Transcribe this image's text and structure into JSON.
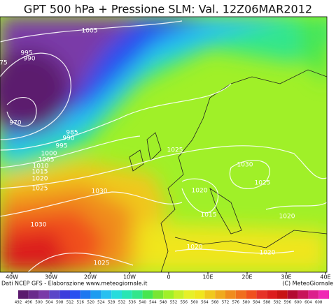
{
  "title": "GPT 500 hPa + Pressione SLM: Val. 12Z06MAR2012",
  "isobars": [
    "1005",
    "995",
    "990",
    "75",
    "970",
    "985",
    "990",
    "995",
    "1000",
    "1005",
    "1010",
    "1015",
    "1020",
    "1025",
    "1030",
    "1025",
    "1030",
    "1025",
    "1020",
    "1015",
    "1020",
    "1030",
    "1020",
    "1020",
    "1025"
  ],
  "longitudes": [
    "40W",
    "30W",
    "20W",
    "10W",
    "0",
    "10E",
    "20E",
    "30E",
    "40E"
  ],
  "credits_left": "Dati NCEP GFS - Elaborazione www.meteogiornale.it",
  "credits_right": "(C) MeteoGiornale",
  "scale": {
    "values": [
      492,
      496,
      500,
      504,
      508,
      512,
      516,
      520,
      524,
      528,
      532,
      536,
      540,
      544,
      548,
      552,
      556,
      560,
      564,
      568,
      572,
      576,
      580,
      584,
      588,
      592,
      596,
      600,
      604,
      608
    ],
    "colors": [
      "#5b1a6e",
      "#6a2a8c",
      "#7a3aa8",
      "#5a46c8",
      "#3c3cdc",
      "#2850f0",
      "#1e78f0",
      "#1e9cf0",
      "#28c0f0",
      "#28dcdc",
      "#28e6b4",
      "#32e68c",
      "#46e650",
      "#78e632",
      "#a0f028",
      "#c8f028",
      "#e6f028",
      "#f0e61e",
      "#f0c81e",
      "#f0aa1e",
      "#f08c1e",
      "#f06e1e",
      "#f0501e",
      "#e63228",
      "#dc1e1e",
      "#c81414",
      "#b40a32",
      "#c8145a",
      "#dc1e8c",
      "#f028b4"
    ]
  }
}
